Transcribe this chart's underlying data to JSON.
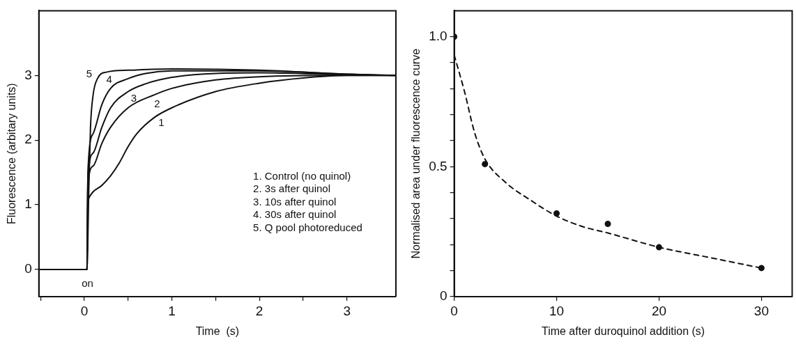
{
  "chart_data": [
    {
      "type": "line",
      "xlabel": "Time  (s)",
      "ylabel": "Fluorescence (arbitary units)",
      "xlim": [
        -0.52,
        3.56
      ],
      "ylim": [
        -0.42,
        4.0
      ],
      "xticks": [
        {
          "value": -0.5,
          "label": null
        },
        0,
        {
          "value": 0.5,
          "label": null
        },
        1,
        {
          "value": 1.5,
          "label": null
        },
        2,
        {
          "value": 2.5,
          "label": null
        },
        3
      ],
      "yticks": [
        0,
        1,
        2,
        3
      ],
      "marker": "none",
      "line_style": "solid",
      "series": [
        {
          "name": "1",
          "color": "#111111",
          "x": [
            -0.52,
            0.03,
            0.04,
            0.05,
            0.1,
            0.2,
            0.3,
            0.4,
            0.5,
            0.6,
            0.8,
            1.0,
            1.5,
            2.0,
            2.5,
            3.0,
            3.56
          ],
          "values": [
            0,
            0,
            1.0,
            1.1,
            1.2,
            1.3,
            1.45,
            1.65,
            1.9,
            2.1,
            2.35,
            2.5,
            2.75,
            2.88,
            2.96,
            3.0,
            3.0
          ]
        },
        {
          "name": "2",
          "color": "#111111",
          "x": [
            -0.52,
            0.03,
            0.04,
            0.1,
            0.2,
            0.3,
            0.5,
            0.8,
            1.0,
            1.5,
            2.0,
            3.0,
            3.56
          ],
          "values": [
            0,
            0,
            1.3,
            1.6,
            1.95,
            2.2,
            2.5,
            2.7,
            2.8,
            2.93,
            2.98,
            3.0,
            3.0
          ]
        },
        {
          "name": "3",
          "color": "#111111",
          "x": [
            -0.52,
            0.03,
            0.04,
            0.1,
            0.2,
            0.3,
            0.5,
            0.7,
            1.0,
            1.5,
            2.0,
            3.0,
            3.56
          ],
          "values": [
            0,
            0,
            1.4,
            1.8,
            2.2,
            2.5,
            2.75,
            2.87,
            2.97,
            3.03,
            3.04,
            3.01,
            3.0
          ]
        },
        {
          "name": "4",
          "color": "#111111",
          "x": [
            -0.52,
            0.03,
            0.04,
            0.1,
            0.2,
            0.3,
            0.5,
            0.7,
            1.0,
            2.0,
            3.0,
            3.56
          ],
          "values": [
            0,
            0,
            1.5,
            2.1,
            2.55,
            2.8,
            2.95,
            3.03,
            3.07,
            3.07,
            3.02,
            3.0
          ]
        },
        {
          "name": "5",
          "color": "#111111",
          "x": [
            -0.52,
            0.03,
            0.05,
            0.07,
            0.1,
            0.15,
            0.25,
            0.5,
            1.0,
            2.0,
            3.0,
            3.56
          ],
          "values": [
            0,
            0,
            1.2,
            2.2,
            2.7,
            2.95,
            3.05,
            3.08,
            3.1,
            3.08,
            3.02,
            3.0
          ]
        }
      ],
      "annotations": [
        "1. Control (no quinol)",
        "2. 3s after quinol",
        "3. 10s after quinol",
        "4. 30s after quinol",
        "5. Q pool photoreduced",
        "on"
      ]
    },
    {
      "type": "scatter",
      "xlabel": "Time after duroquinol addition (s)",
      "ylabel": "Normalised area under fluorescence curve",
      "xlim": [
        0,
        33
      ],
      "ylim": [
        0,
        1.1
      ],
      "xticks": [
        0,
        10,
        20,
        30
      ],
      "yticks": [
        0,
        {
          "value": 0.1,
          "label": null
        },
        {
          "value": 0.2,
          "label": null
        },
        {
          "value": 0.3,
          "label": null
        },
        {
          "value": 0.4,
          "label": null
        },
        {
          "value": 0.5,
          "label": "0.5"
        },
        {
          "value": 0.6,
          "label": null
        },
        {
          "value": 0.7,
          "label": null
        },
        {
          "value": 0.8,
          "label": null
        },
        {
          "value": 0.9,
          "label": null
        },
        {
          "value": 1.0,
          "label": "1.0"
        }
      ],
      "marker": "circle",
      "series": [
        {
          "color": "#111111",
          "x": [
            0,
            3,
            10,
            15,
            20,
            30
          ],
          "values": [
            1.0,
            0.51,
            0.32,
            0.28,
            0.19,
            0.11
          ]
        },
        {
          "type": "line",
          "line_style": "dashed",
          "marker": "none",
          "color": "#111111",
          "x": [
            0,
            1,
            2,
            3,
            5,
            7.5,
            10,
            12.5,
            15,
            20,
            25,
            30
          ],
          "values": [
            0.93,
            0.79,
            0.63,
            0.53,
            0.44,
            0.37,
            0.31,
            0.27,
            0.245,
            0.19,
            0.15,
            0.11
          ]
        }
      ]
    }
  ]
}
